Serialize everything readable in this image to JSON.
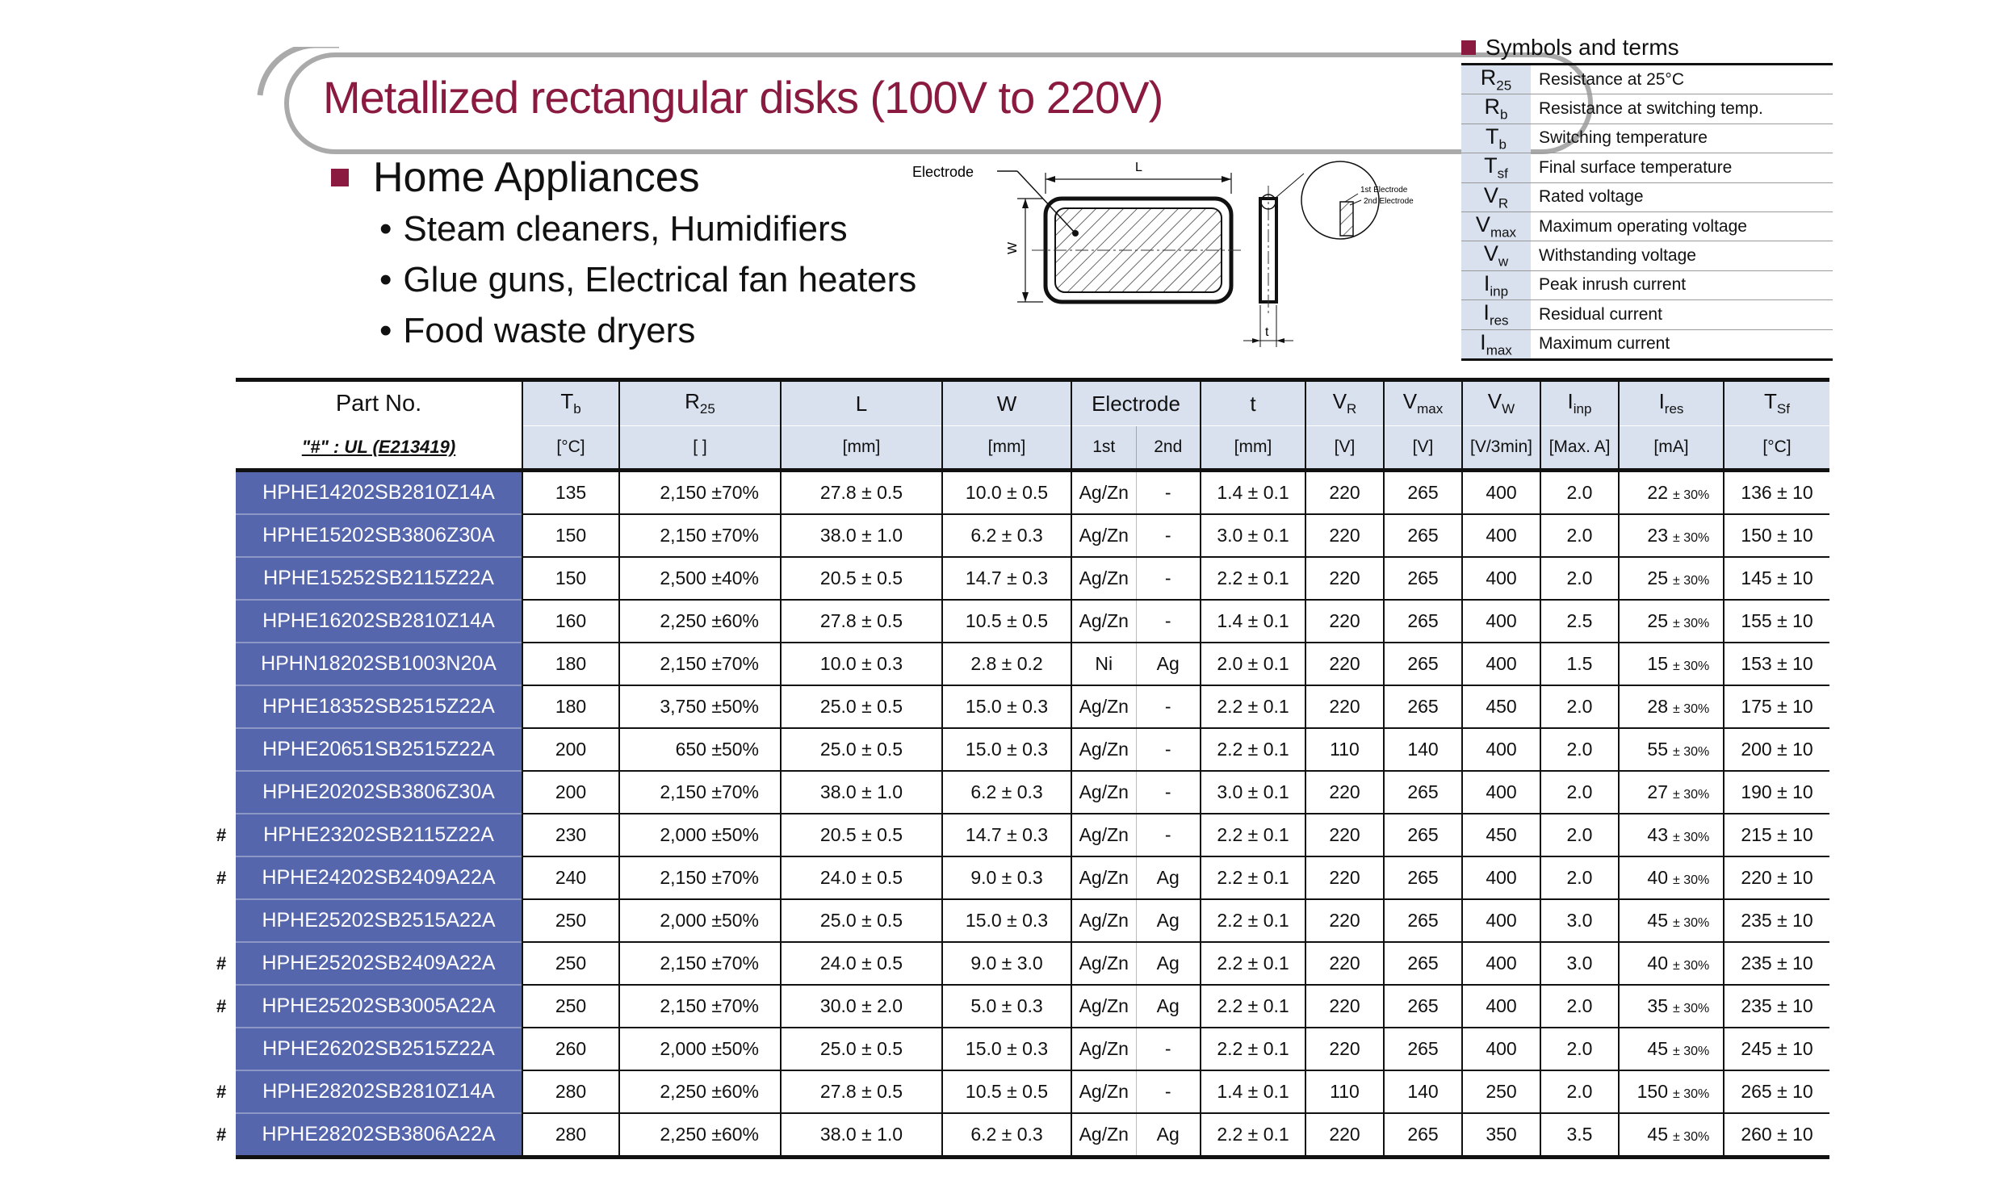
{
  "title": "Metallized rectangular disks (100V to 220V)",
  "applications": {
    "heading": "Home Appliances",
    "items": [
      "Steam cleaners, Humidifiers",
      "Glue guns, Electrical fan heaters",
      "Food waste dryers"
    ]
  },
  "diagram": {
    "electrode_label": "Electrode",
    "length_label": "L",
    "width_label": "W",
    "thickness_label": "t",
    "first_electrode": "1st Electrode",
    "second_electrode": "2nd Electrode"
  },
  "symbols": {
    "title": "Symbols and terms",
    "items": [
      {
        "sym": "R",
        "sub": "25",
        "desc": "Resistance at 25°C"
      },
      {
        "sym": "R",
        "sub": "b",
        "desc": "Resistance at switching temp."
      },
      {
        "sym": "T",
        "sub": "b",
        "desc": "Switching temperature"
      },
      {
        "sym": "T",
        "sub": "sf",
        "desc": "Final surface temperature"
      },
      {
        "sym": "V",
        "sub": "R",
        "desc": "Rated voltage"
      },
      {
        "sym": "V",
        "sub": "max",
        "desc": "Maximum operating voltage"
      },
      {
        "sym": "V",
        "sub": "w",
        "desc": "Withstanding voltage"
      },
      {
        "sym": "I",
        "sub": "inp",
        "desc": "Peak inrush current"
      },
      {
        "sym": "I",
        "sub": "res",
        "desc": "Residual current"
      },
      {
        "sym": "I",
        "sub": "max",
        "desc": "Maximum current"
      }
    ]
  },
  "table": {
    "part_header": "Part No.",
    "part_note": "\"#\" : UL (E213419)",
    "columns": [
      {
        "sym": "T",
        "sub": "b",
        "unit": "[°C]"
      },
      {
        "sym": "R",
        "sub": "25",
        "unit": "[  ]"
      },
      {
        "sym": "L",
        "sub": "",
        "unit": "[mm]"
      },
      {
        "sym": "W",
        "sub": "",
        "unit": "[mm]"
      },
      {
        "sym": "Electrode",
        "sub": "",
        "unit": ""
      },
      {
        "sym": "t",
        "sub": "",
        "unit": "[mm]"
      },
      {
        "sym": "V",
        "sub": "R",
        "unit": "[V]"
      },
      {
        "sym": "V",
        "sub": "max",
        "unit": "[V]"
      },
      {
        "sym": "V",
        "sub": "W",
        "unit": "[V/3min]"
      },
      {
        "sym": "I",
        "sub": "inp",
        "unit": "[Max. A]"
      },
      {
        "sym": "I",
        "sub": "res",
        "unit": "[mA]"
      },
      {
        "sym": "T",
        "sub": "Sf",
        "unit": "[°C]"
      }
    ],
    "electrode_sub": [
      "1st",
      "2nd"
    ],
    "rows": [
      {
        "hash": "",
        "part": "HPHE14202SB2810Z14A",
        "tb": "135",
        "r25": "2,150",
        "r25tol": "±70%",
        "L": "27.8 ± 0.5",
        "W": "10.0 ± 0.5",
        "e1": "Ag/Zn",
        "e2": "-",
        "t": "1.4 ± 0.1",
        "vr": "220",
        "vmax": "265",
        "vw": "400",
        "iinp": "2.0",
        "ires": "22",
        "irestol": "± 30%",
        "tsf": "136 ± 10"
      },
      {
        "hash": "",
        "part": "HPHE15202SB3806Z30A",
        "tb": "150",
        "r25": "2,150",
        "r25tol": "±70%",
        "L": "38.0 ± 1.0",
        "W": "6.2 ± 0.3",
        "e1": "Ag/Zn",
        "e2": "-",
        "t": "3.0 ± 0.1",
        "vr": "220",
        "vmax": "265",
        "vw": "400",
        "iinp": "2.0",
        "ires": "23",
        "irestol": "± 30%",
        "tsf": "150 ± 10"
      },
      {
        "hash": "",
        "part": "HPHE15252SB2115Z22A",
        "tb": "150",
        "r25": "2,500",
        "r25tol": "±40%",
        "L": "20.5 ± 0.5",
        "W": "14.7 ± 0.3",
        "e1": "Ag/Zn",
        "e2": "-",
        "t": "2.2 ± 0.1",
        "vr": "220",
        "vmax": "265",
        "vw": "400",
        "iinp": "2.0",
        "ires": "25",
        "irestol": "± 30%",
        "tsf": "145 ± 10"
      },
      {
        "hash": "",
        "part": "HPHE16202SB2810Z14A",
        "tb": "160",
        "r25": "2,250",
        "r25tol": "±60%",
        "L": "27.8 ± 0.5",
        "W": "10.5 ± 0.5",
        "e1": "Ag/Zn",
        "e2": "-",
        "t": "1.4 ± 0.1",
        "vr": "220",
        "vmax": "265",
        "vw": "400",
        "iinp": "2.5",
        "ires": "25",
        "irestol": "± 30%",
        "tsf": "155 ± 10"
      },
      {
        "hash": "",
        "part": "HPHN18202SB1003N20A",
        "tb": "180",
        "r25": "2,150",
        "r25tol": "±70%",
        "L": "10.0 ± 0.3",
        "W": "2.8 ± 0.2",
        "e1": "Ni",
        "e2": "Ag",
        "t": "2.0 ± 0.1",
        "vr": "220",
        "vmax": "265",
        "vw": "400",
        "iinp": "1.5",
        "ires": "15",
        "irestol": "± 30%",
        "tsf": "153 ± 10"
      },
      {
        "hash": "",
        "part": "HPHE18352SB2515Z22A",
        "tb": "180",
        "r25": "3,750",
        "r25tol": "±50%",
        "L": "25.0 ± 0.5",
        "W": "15.0 ± 0.3",
        "e1": "Ag/Zn",
        "e2": "-",
        "t": "2.2 ± 0.1",
        "vr": "220",
        "vmax": "265",
        "vw": "450",
        "iinp": "2.0",
        "ires": "28",
        "irestol": "± 30%",
        "tsf": "175 ± 10"
      },
      {
        "hash": "",
        "part": "HPHE20651SB2515Z22A",
        "tb": "200",
        "r25": "650",
        "r25tol": "±50%",
        "L": "25.0 ± 0.5",
        "W": "15.0 ± 0.3",
        "e1": "Ag/Zn",
        "e2": "-",
        "t": "2.2 ± 0.1",
        "vr": "110",
        "vmax": "140",
        "vw": "400",
        "iinp": "2.0",
        "ires": "55",
        "irestol": "± 30%",
        "tsf": "200 ± 10"
      },
      {
        "hash": "",
        "part": "HPHE20202SB3806Z30A",
        "tb": "200",
        "r25": "2,150",
        "r25tol": "±70%",
        "L": "38.0 ± 1.0",
        "W": "6.2 ± 0.3",
        "e1": "Ag/Zn",
        "e2": "-",
        "t": "3.0 ± 0.1",
        "vr": "220",
        "vmax": "265",
        "vw": "400",
        "iinp": "2.0",
        "ires": "27",
        "irestol": "± 30%",
        "tsf": "190 ± 10"
      },
      {
        "hash": "#",
        "part": "HPHE23202SB2115Z22A",
        "tb": "230",
        "r25": "2,000",
        "r25tol": "±50%",
        "L": "20.5 ± 0.5",
        "W": "14.7 ± 0.3",
        "e1": "Ag/Zn",
        "e2": "-",
        "t": "2.2 ± 0.1",
        "vr": "220",
        "vmax": "265",
        "vw": "450",
        "iinp": "2.0",
        "ires": "43",
        "irestol": "± 30%",
        "tsf": "215 ± 10"
      },
      {
        "hash": "#",
        "part": "HPHE24202SB2409A22A",
        "tb": "240",
        "r25": "2,150",
        "r25tol": "±70%",
        "L": "24.0 ± 0.5",
        "W": "9.0 ± 0.3",
        "e1": "Ag/Zn",
        "e2": "Ag",
        "t": "2.2 ± 0.1",
        "vr": "220",
        "vmax": "265",
        "vw": "400",
        "iinp": "2.0",
        "ires": "40",
        "irestol": "± 30%",
        "tsf": "220 ± 10"
      },
      {
        "hash": "",
        "part": "HPHE25202SB2515A22A",
        "tb": "250",
        "r25": "2,000",
        "r25tol": "±50%",
        "L": "25.0 ± 0.5",
        "W": "15.0 ± 0.3",
        "e1": "Ag/Zn",
        "e2": "Ag",
        "t": "2.2 ± 0.1",
        "vr": "220",
        "vmax": "265",
        "vw": "400",
        "iinp": "3.0",
        "ires": "45",
        "irestol": "± 30%",
        "tsf": "235 ± 10"
      },
      {
        "hash": "#",
        "part": "HPHE25202SB2409A22A",
        "tb": "250",
        "r25": "2,150",
        "r25tol": "±70%",
        "L": "24.0 ± 0.5",
        "W": "9.0 ± 3.0",
        "e1": "Ag/Zn",
        "e2": "Ag",
        "t": "2.2 ± 0.1",
        "vr": "220",
        "vmax": "265",
        "vw": "400",
        "iinp": "3.0",
        "ires": "40",
        "irestol": "± 30%",
        "tsf": "235 ± 10"
      },
      {
        "hash": "#",
        "part": "HPHE25202SB3005A22A",
        "tb": "250",
        "r25": "2,150",
        "r25tol": "±70%",
        "L": "30.0 ± 2.0",
        "W": "5.0 ± 0.3",
        "e1": "Ag/Zn",
        "e2": "Ag",
        "t": "2.2 ± 0.1",
        "vr": "220",
        "vmax": "265",
        "vw": "400",
        "iinp": "2.0",
        "ires": "35",
        "irestol": "± 30%",
        "tsf": "235 ± 10"
      },
      {
        "hash": "",
        "part": "HPHE26202SB2515Z22A",
        "tb": "260",
        "r25": "2,000",
        "r25tol": "±50%",
        "L": "25.0 ± 0.5",
        "W": "15.0 ± 0.3",
        "e1": "Ag/Zn",
        "e2": "-",
        "t": "2.2 ± 0.1",
        "vr": "220",
        "vmax": "265",
        "vw": "400",
        "iinp": "2.0",
        "ires": "45",
        "irestol": "± 30%",
        "tsf": "245 ± 10"
      },
      {
        "hash": "#",
        "part": "HPHE28202SB2810Z14A",
        "tb": "280",
        "r25": "2,250",
        "r25tol": "±60%",
        "L": "27.8 ± 0.5",
        "W": "10.5 ± 0.5",
        "e1": "Ag/Zn",
        "e2": "-",
        "t": "1.4 ± 0.1",
        "vr": "110",
        "vmax": "140",
        "vw": "250",
        "iinp": "2.0",
        "ires": "150",
        "irestol": "± 30%",
        "tsf": "265 ± 10"
      },
      {
        "hash": "#",
        "part": "HPHE28202SB3806A22A",
        "tb": "280",
        "r25": "2,250",
        "r25tol": "±60%",
        "L": "38.0 ± 1.0",
        "W": "6.2 ± 0.3",
        "e1": "Ag/Zn",
        "e2": "Ag",
        "t": "2.2 ± 0.1",
        "vr": "220",
        "vmax": "265",
        "vw": "350",
        "iinp": "3.5",
        "ires": "45",
        "irestol": "± 30%",
        "tsf": "260 ± 10"
      }
    ]
  }
}
